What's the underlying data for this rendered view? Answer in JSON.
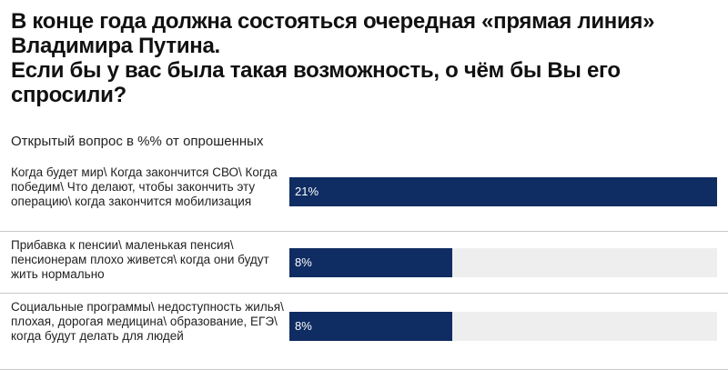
{
  "title": "В конце года должна состояться очередная «прямая линия» Владимира Путина.\nЕсли бы у вас была такая возможность, о чём бы Вы его спросили?",
  "subtitle": "Открытый вопрос в %% от опрошенных",
  "colors": {
    "bar": "#0f2d62",
    "track": "#eeeeee",
    "label_text": "#ffffff"
  },
  "chart_data": {
    "type": "bar",
    "orientation": "horizontal",
    "title": "В конце года должна состояться очередная «прямая линия» Владимира Путина. Если бы у вас была такая возможность, о чём бы Вы его спросили?",
    "subtitle": "Открытый вопрос в %% от опрошенных",
    "categories": [
      "Когда будет мир\\ Когда закончится СВО\\ Когда победим\\ Что делают, чтобы закончить эту операцию\\ когда закончится мобилизация",
      "Прибавка к пенсии\\ маленькая пенсия\\ пенсионерам плохо живется\\ когда они будут жить нормально",
      "Социальные программы\\ недоступность жилья\\ плохая, дорогая медицина\\ образование, ЕГЭ\\ когда будут делать для людей"
    ],
    "values": [
      21,
      8,
      8
    ],
    "value_labels": [
      "21%",
      "8%",
      "8%"
    ],
    "xlim": [
      0,
      21
    ],
    "grid": false
  }
}
